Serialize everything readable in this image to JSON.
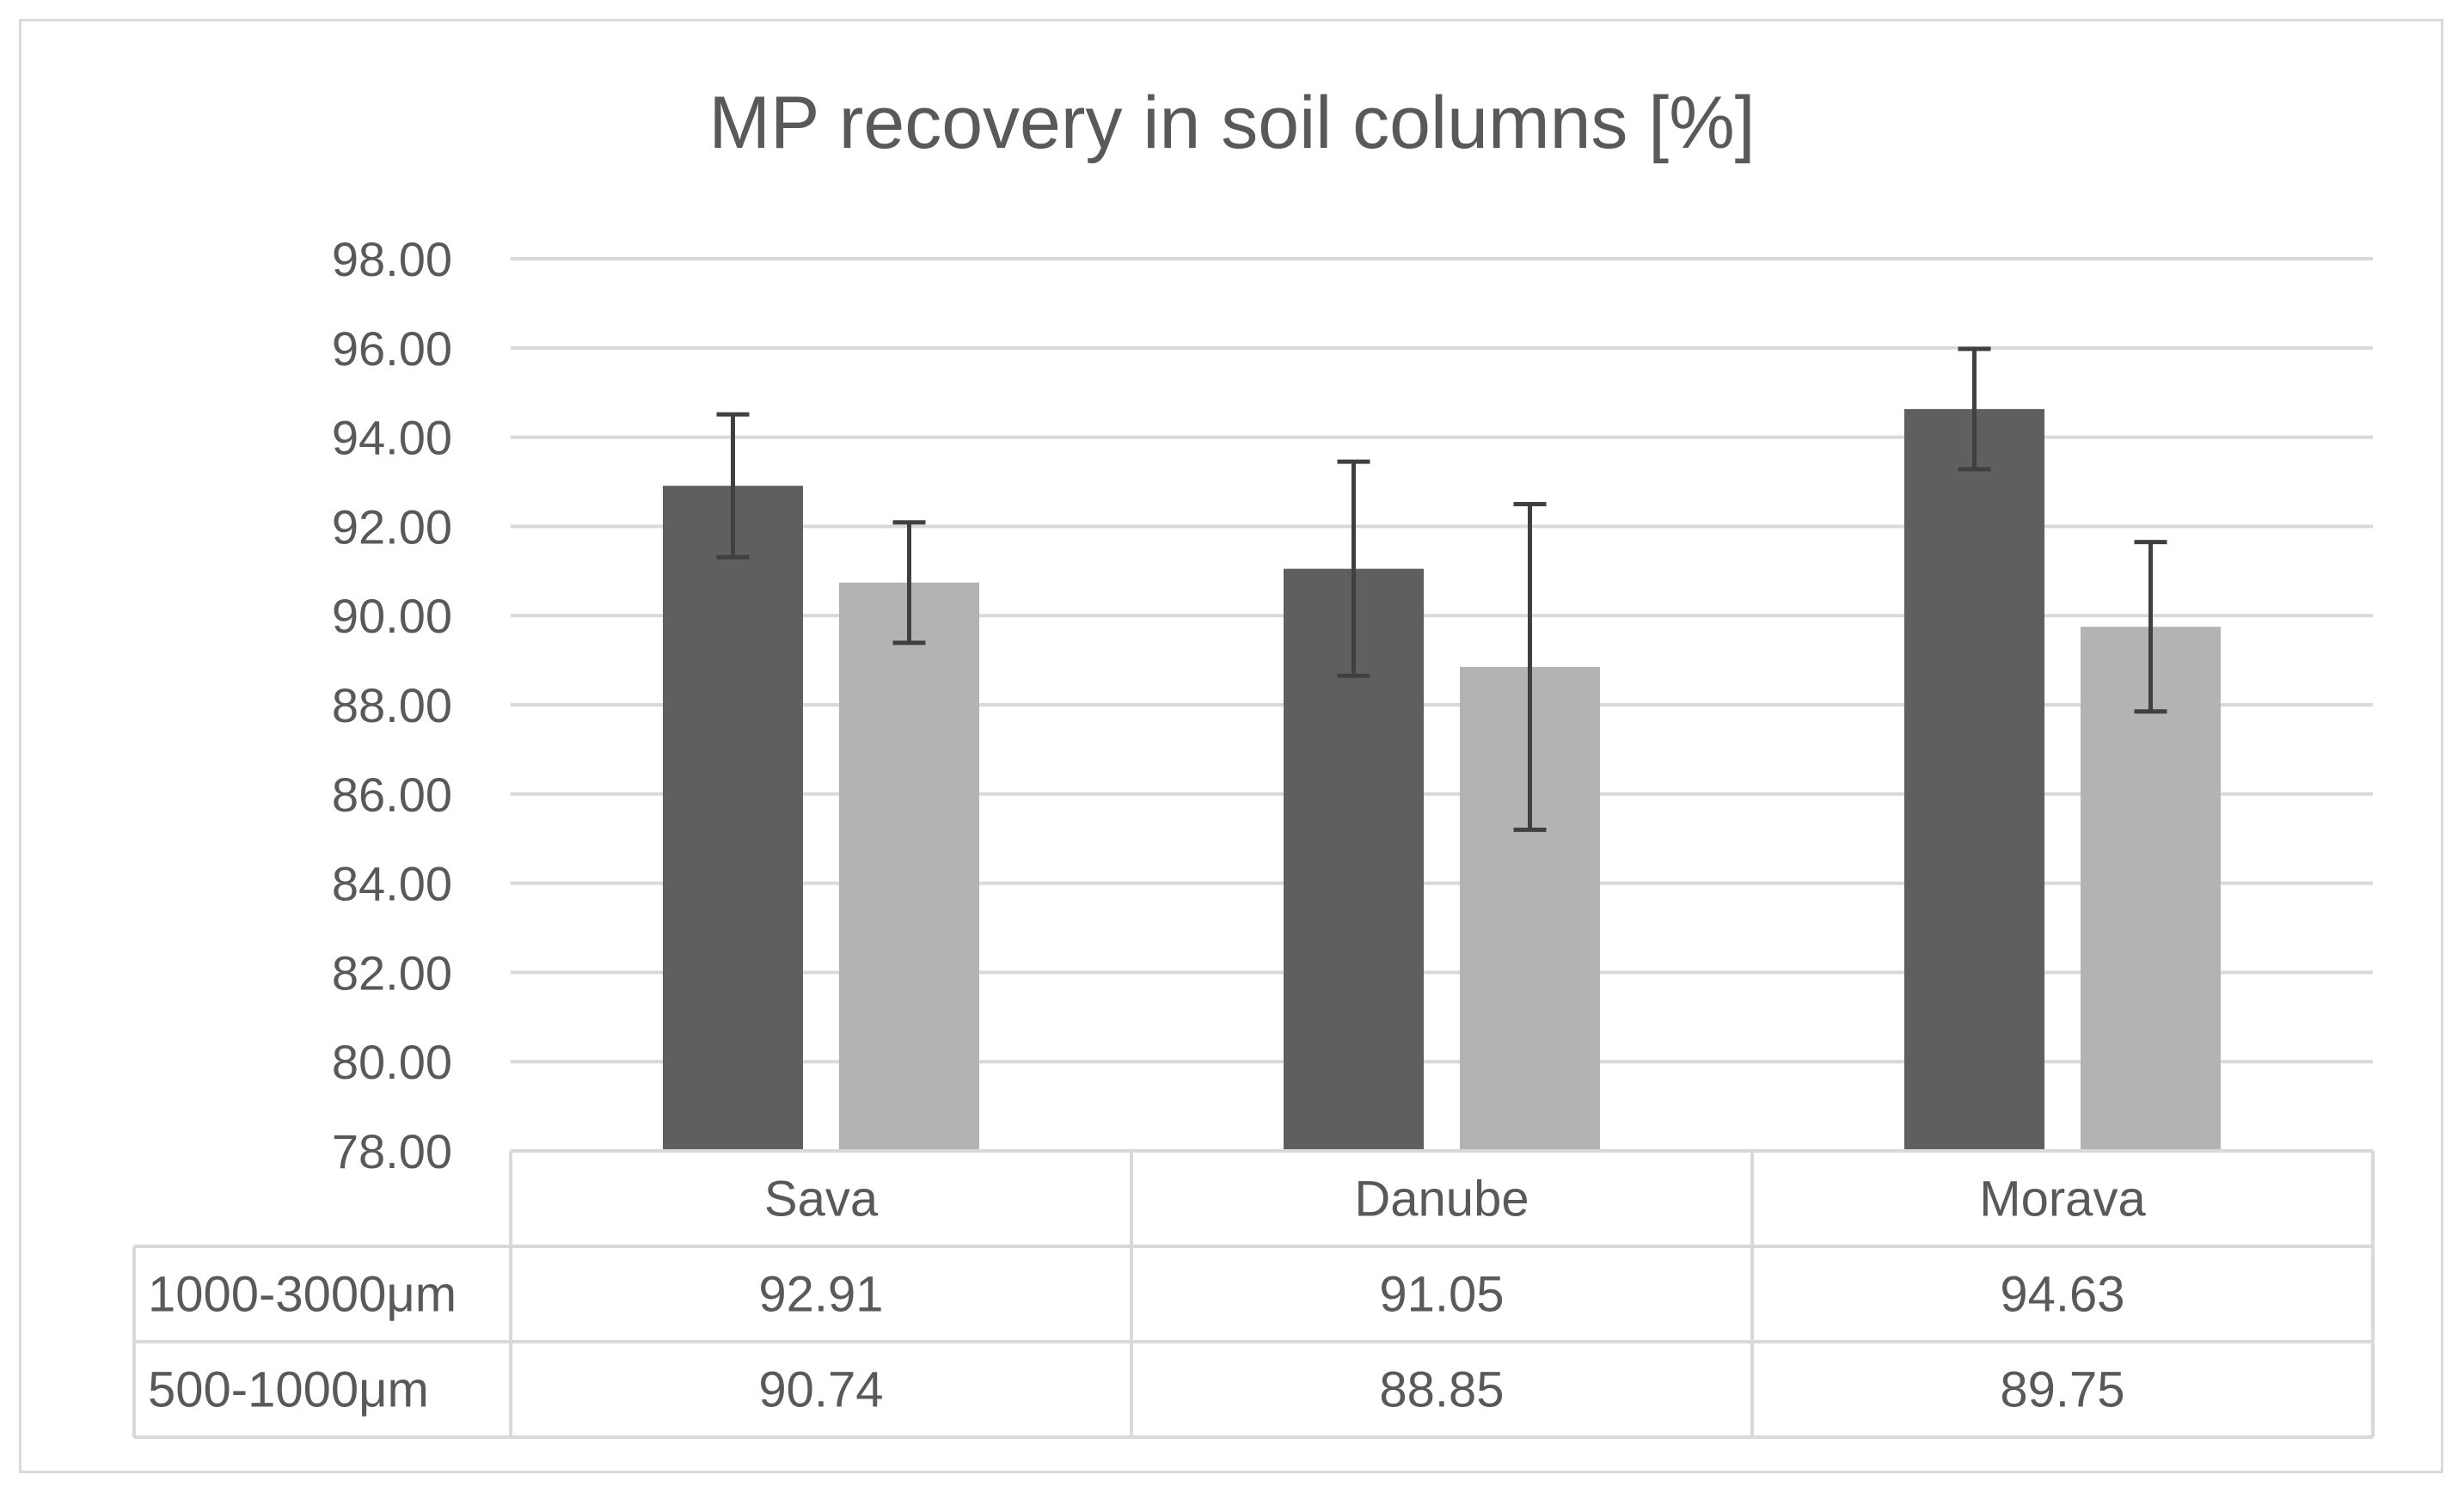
{
  "chart_data": {
    "type": "bar",
    "title": "MP recovery in soil columns [%]",
    "xlabel": "",
    "ylabel": "",
    "categories": [
      "Sava",
      "Danube",
      "Morava"
    ],
    "ylim": [
      78,
      98
    ],
    "ytick_step": 2,
    "ytick_labels": [
      "78.00",
      "80.00",
      "82.00",
      "84.00",
      "86.00",
      "88.00",
      "90.00",
      "92.00",
      "94.00",
      "96.00",
      "98.00"
    ],
    "grid": true,
    "legend": "data table below chart",
    "series": [
      {
        "name": "1000-3000μm",
        "color": "#5f5f5f",
        "values": [
          92.91,
          91.05,
          94.63
        ],
        "value_labels": [
          "92.91",
          "91.05",
          "94.63"
        ],
        "error": [
          1.6,
          2.4,
          1.35
        ]
      },
      {
        "name": "500-1000μm",
        "color": "#b3b3b3",
        "values": [
          90.74,
          88.85,
          89.75
        ],
        "value_labels": [
          "90.74",
          "88.85",
          "89.75"
        ],
        "error": [
          1.35,
          3.65,
          1.9
        ]
      }
    ]
  }
}
